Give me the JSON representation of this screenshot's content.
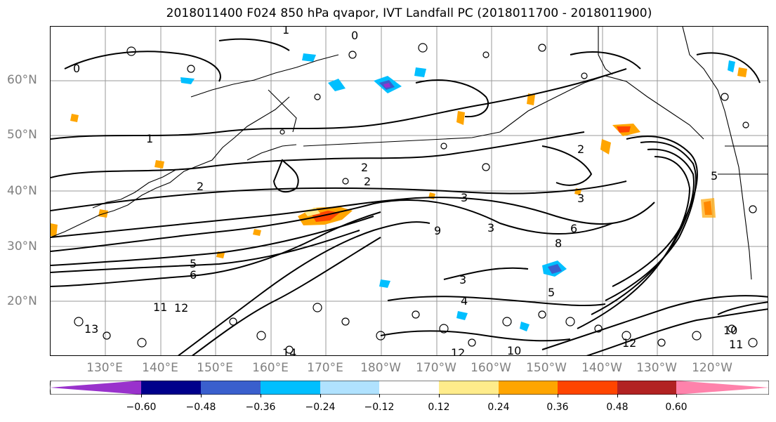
{
  "title": "2018011400 F024 850 hPa qvapor, IVT Landfall PC (2018011700 - 2018011900)",
  "map": {
    "lat_labels": [
      "60°N",
      "50°N",
      "40°N",
      "30°N",
      "20°N"
    ],
    "lon_labels": [
      "130°E",
      "140°E",
      "150°E",
      "160°E",
      "170°E",
      "180°W",
      "170°W",
      "160°W",
      "150°W",
      "140°W",
      "130°W",
      "120°W"
    ],
    "contour_labels": [
      "0",
      "1",
      "2",
      "3",
      "4",
      "5",
      "6",
      "8",
      "9",
      "10",
      "11",
      "12",
      "13",
      "14"
    ]
  },
  "colorbar": {
    "colors": [
      "#9932CC",
      "#00008B",
      "#3A5FCD",
      "#00BFFF",
      "#B0E2FF",
      "#FFFFFF",
      "#FFEC8B",
      "#FFA500",
      "#FF4500",
      "#B22222",
      "#FF82AB"
    ],
    "ticks": [
      "−0.60",
      "−0.48",
      "−0.36",
      "−0.24",
      "−0.12",
      "0.12",
      "0.24",
      "0.36",
      "0.48",
      "0.60"
    ]
  }
}
